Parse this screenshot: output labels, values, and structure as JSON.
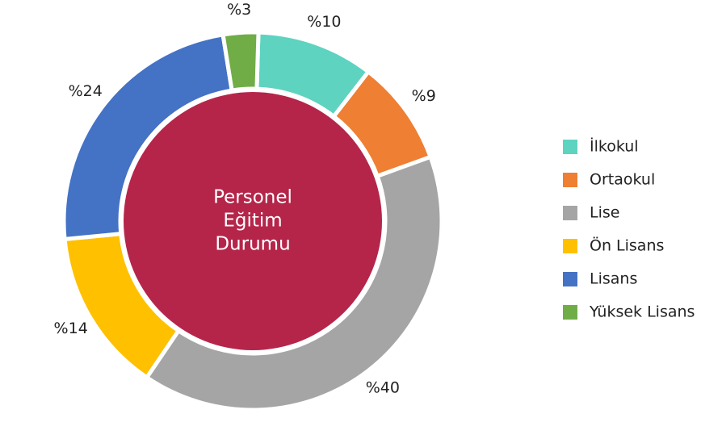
{
  "chart_data": {
    "type": "donut",
    "center_label": [
      "Personel",
      "Eğitim",
      "Durumu"
    ],
    "categories": [
      "İlkokul",
      "Ortaokul",
      "Lise",
      "Ön Lisans",
      "Lisans",
      "Yüksek Lisans"
    ],
    "values": [
      10,
      9,
      40,
      14,
      24,
      3
    ],
    "value_labels": [
      "%10",
      "%9",
      "%40",
      "%14",
      "%24",
      "%3"
    ],
    "colors": [
      "#5dd3c0",
      "#ee7f33",
      "#a5a5a5",
      "#ffc000",
      "#4472c4",
      "#70ad47"
    ],
    "center_color": "#b5254a",
    "legend": "right"
  }
}
